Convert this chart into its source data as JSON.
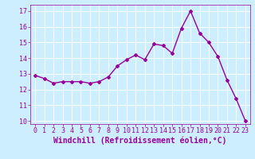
{
  "x": [
    0,
    1,
    2,
    3,
    4,
    5,
    6,
    7,
    8,
    9,
    10,
    11,
    12,
    13,
    14,
    15,
    16,
    17,
    18,
    19,
    20,
    21,
    22,
    23
  ],
  "y": [
    12.9,
    12.7,
    12.4,
    12.5,
    12.5,
    12.5,
    12.4,
    12.5,
    12.8,
    13.5,
    13.9,
    14.2,
    13.9,
    14.9,
    14.8,
    14.3,
    15.9,
    17.0,
    15.6,
    15.0,
    14.1,
    12.6,
    11.4,
    10.0
  ],
  "line_color": "#990099",
  "marker": "D",
  "marker_size": 2.0,
  "linewidth": 1.0,
  "xlabel": "Windchill (Refroidissement éolien,°C)",
  "xlabel_fontsize": 7,
  "ylim": [
    9.8,
    17.4
  ],
  "xlim": [
    -0.5,
    23.5
  ],
  "yticks": [
    10,
    11,
    12,
    13,
    14,
    15,
    16,
    17
  ],
  "xticks": [
    0,
    1,
    2,
    3,
    4,
    5,
    6,
    7,
    8,
    9,
    10,
    11,
    12,
    13,
    14,
    15,
    16,
    17,
    18,
    19,
    20,
    21,
    22,
    23
  ],
  "background_color": "#cceeff",
  "grid_color": "#aaddcc",
  "tick_color": "#990099",
  "tick_fontsize": 6,
  "label_color": "#990099"
}
